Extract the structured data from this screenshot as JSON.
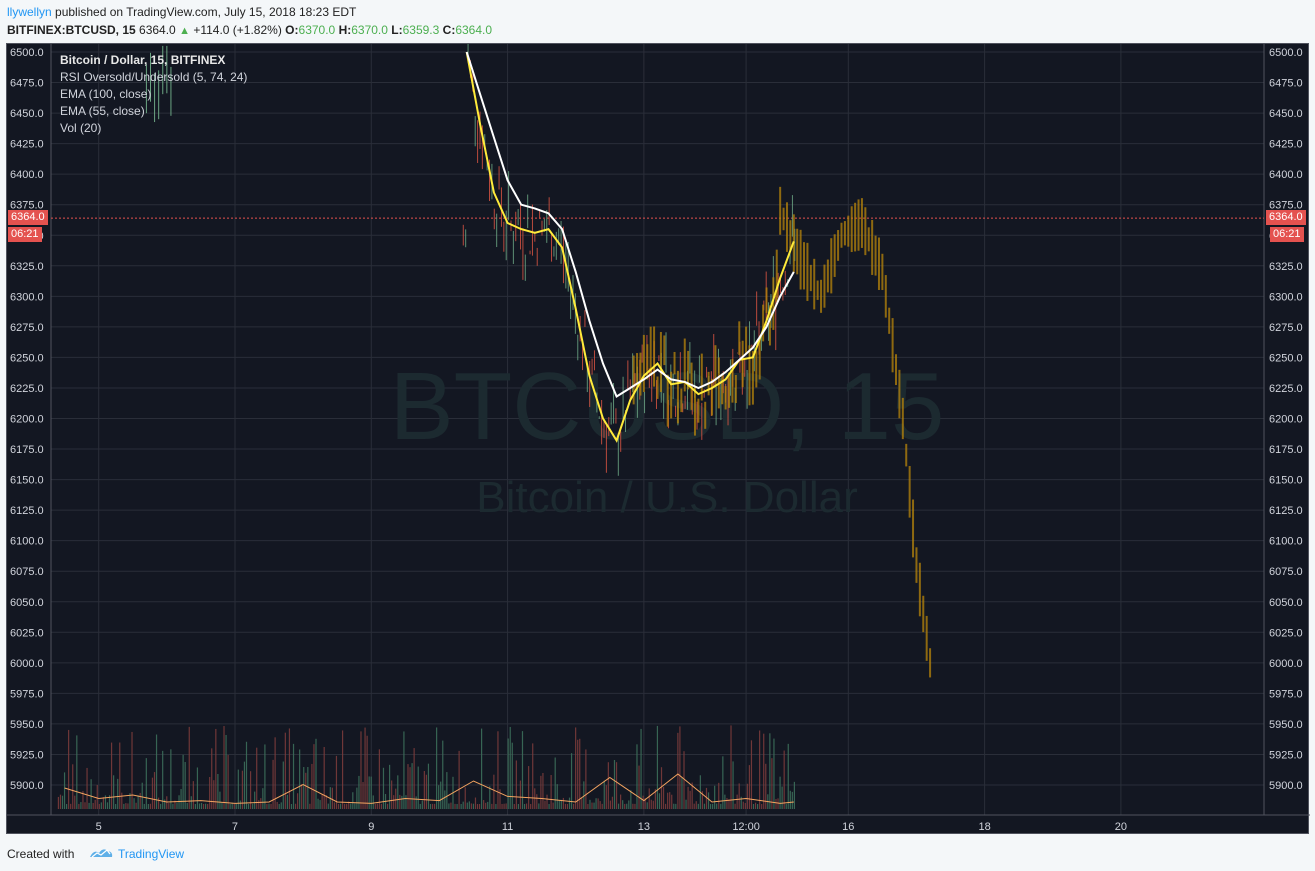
{
  "header": {
    "author": "llywellyn",
    "published": "published on TradingView.com, July 15, 2018 18:23 EDT",
    "symbol": "BITFINEX:BTCUSD, 15",
    "last": "6364.0",
    "change": "+114.0 (+1.82%)",
    "o_label": "O:",
    "o_val": "6370.0",
    "h_label": "H:",
    "h_val": "6370.0",
    "l_label": "L:",
    "l_val": "6359.3",
    "c_label": "C:",
    "c_val": "6364.0"
  },
  "legend": {
    "title": "Bitcoin / Dollar, 15, BITFINEX",
    "rsi": "RSI Oversold/Undersold (5, 74, 24)",
    "ema100": "EMA (100, close)",
    "ema55": "EMA (55, close)",
    "vol": "Vol (20)"
  },
  "badges": {
    "price": "6364.0",
    "timer": "06:21",
    "timer_right": "06:21"
  },
  "watermark": {
    "symbol": "BTCUSD, 15",
    "name": "Bitcoin / U.S. Dollar"
  },
  "footer": {
    "created": "Created with",
    "brand": "TradingView"
  },
  "colors": {
    "background": "#131722",
    "grid": "#2a2e39",
    "ema100": "#ffffff",
    "ema55": "#ffeb3b",
    "projection": "#b8860b",
    "price_line": "#e4524f",
    "volume_ma": "#f4a460"
  },
  "chart_data": {
    "type": "line",
    "ylim": [
      5875,
      6505
    ],
    "y_ticks": [
      6500.0,
      6475.0,
      6450.0,
      6425.0,
      6400.0,
      6375.0,
      6350.0,
      6325.0,
      6300.0,
      6275.0,
      6250.0,
      6225.0,
      6200.0,
      6175.0,
      6150.0,
      6125.0,
      6100.0,
      6075.0,
      6050.0,
      6025.0,
      6000.0,
      5975.0,
      5950.0,
      5925.0,
      5900.0
    ],
    "x_ticks": [
      "5",
      "7",
      "9",
      "11",
      "13",
      "12:00",
      "16",
      "18",
      "20"
    ],
    "x_tick_days": [
      5,
      7,
      9,
      11,
      13,
      14.5,
      16,
      18,
      20
    ],
    "xlim": [
      4.3,
      22.1
    ],
    "current_price": 6364.0,
    "series": [
      {
        "name": "EMA (55, close)",
        "x": [
          10.4,
          10.6,
          10.8,
          11.0,
          11.2,
          11.4,
          11.6,
          11.8,
          12.0,
          12.2,
          12.4,
          12.6,
          12.8,
          13.0,
          13.2,
          13.4,
          13.6,
          13.8,
          14.0,
          14.2,
          14.4,
          14.6,
          14.8,
          15.0,
          15.2
        ],
        "values": [
          6500,
          6440,
          6385,
          6360,
          6355,
          6352,
          6355,
          6340,
          6290,
          6235,
          6200,
          6182,
          6215,
          6235,
          6245,
          6228,
          6230,
          6220,
          6225,
          6232,
          6248,
          6250,
          6280,
          6315,
          6345
        ]
      },
      {
        "name": "EMA (100, close)",
        "x": [
          10.4,
          10.6,
          10.8,
          11.0,
          11.2,
          11.4,
          11.6,
          11.8,
          12.0,
          12.2,
          12.4,
          12.6,
          12.8,
          13.0,
          13.2,
          13.4,
          13.6,
          13.8,
          14.0,
          14.2,
          14.4,
          14.6,
          14.8,
          15.0,
          15.2
        ],
        "values": [
          6500,
          6465,
          6430,
          6395,
          6375,
          6372,
          6368,
          6355,
          6320,
          6280,
          6245,
          6218,
          6225,
          6232,
          6240,
          6232,
          6230,
          6225,
          6230,
          6238,
          6248,
          6258,
          6275,
          6300,
          6320
        ]
      }
    ],
    "projection": {
      "x": [
        15.0,
        15.3,
        15.6,
        15.9,
        16.2,
        16.5,
        16.8,
        17.0,
        17.2
      ],
      "values": [
        6370,
        6330,
        6300,
        6350,
        6360,
        6320,
        6200,
        6080,
        6000
      ]
    },
    "volume_ma": {
      "x": [
        4.5,
        5.0,
        5.5,
        6.0,
        6.5,
        7.0,
        7.5,
        8.0,
        8.5,
        9.0,
        9.5,
        10.0,
        10.5,
        11.0,
        11.5,
        12.0,
        12.5,
        13.0,
        13.5,
        14.0,
        14.5,
        15.0,
        15.2
      ],
      "values": [
        0.3,
        0.15,
        0.2,
        0.1,
        0.12,
        0.08,
        0.1,
        0.35,
        0.1,
        0.08,
        0.15,
        0.12,
        0.4,
        0.18,
        0.15,
        0.1,
        0.45,
        0.12,
        0.5,
        0.1,
        0.15,
        0.08,
        0.1
      ]
    }
  }
}
